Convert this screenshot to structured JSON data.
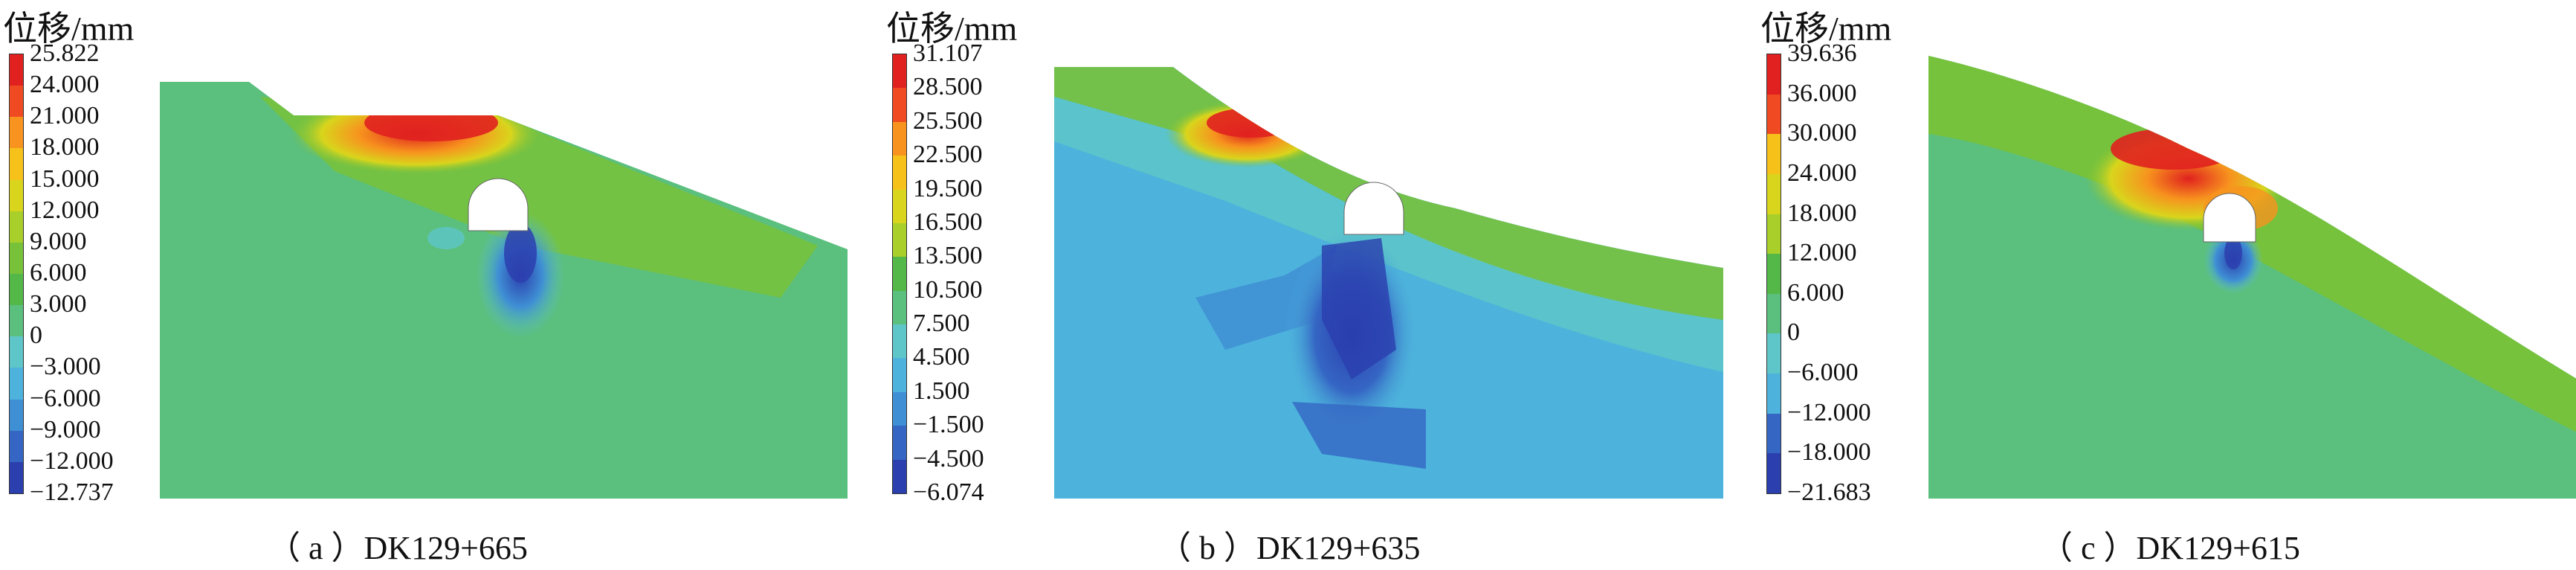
{
  "panels": [
    {
      "id": "a",
      "unit_title": "位移/mm",
      "caption": "（ a ）DK129+665",
      "legend": [
        "25.822",
        "24.000",
        "21.000",
        "18.000",
        "15.000",
        "12.000",
        "9.000",
        "6.000",
        "3.000",
        "0",
        "−3.000",
        "−6.000",
        "−9.000",
        "−12.000",
        "−12.737"
      ]
    },
    {
      "id": "b",
      "unit_title": "位移/mm",
      "caption": "（ b ）DK129+635",
      "legend": [
        "31.107",
        "28.500",
        "25.500",
        "22.500",
        "19.500",
        "16.500",
        "13.500",
        "10.500",
        "7.500",
        "4.500",
        "1.500",
        "−1.500",
        "−4.500",
        "−6.074"
      ]
    },
    {
      "id": "c",
      "unit_title": "位移/mm",
      "caption": "（ c ）DK129+615",
      "legend": [
        "39.636",
        "36.000",
        "30.000",
        "24.000",
        "18.000",
        "12.000",
        "6.000",
        "0",
        "−6.000",
        "−12.000",
        "−18.000",
        "−21.683"
      ]
    }
  ],
  "colormap": [
    "#e0211f",
    "#ef4a22",
    "#f7931e",
    "#f6c21a",
    "#d9d51c",
    "#a8cf2a",
    "#78c23a",
    "#53b848",
    "#5bbf7e",
    "#5ec5c8",
    "#4db3dc",
    "#3f8fd4",
    "#3566c4",
    "#2b3fae"
  ],
  "background_color": "#ffffff"
}
